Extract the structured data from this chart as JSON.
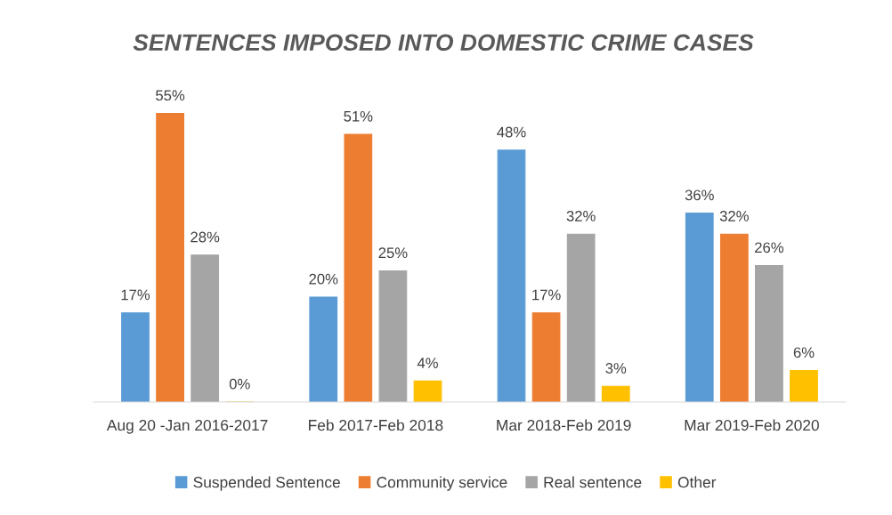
{
  "chart_data": {
    "type": "bar",
    "title": "SENTENCES IMPOSED INTO DOMESTIC CRIME CASES",
    "categories": [
      "Aug 20 -Jan 2016-2017",
      "Feb 2017-Feb 2018",
      "Mar 2018-Feb 2019",
      "Mar 2019-Feb 2020"
    ],
    "series": [
      {
        "name": "Suspended Sentence",
        "color": "#5b9bd5",
        "values": [
          17,
          20,
          48,
          36
        ],
        "value_labels": [
          "17%",
          "20%",
          "48%",
          "36%"
        ]
      },
      {
        "name": "Community service",
        "color": "#ed7d31",
        "values": [
          55,
          51,
          17,
          32
        ],
        "value_labels": [
          "55%",
          "51%",
          "17%",
          "32%"
        ]
      },
      {
        "name": "Real sentence",
        "color": "#a5a5a5",
        "values": [
          28,
          25,
          32,
          26
        ],
        "value_labels": [
          "28%",
          "25%",
          "32%",
          "26%"
        ]
      },
      {
        "name": "Other",
        "color": "#ffc000",
        "values": [
          0,
          4,
          3,
          6
        ],
        "value_labels": [
          "0%",
          "4%",
          "3%",
          "6%"
        ]
      }
    ],
    "legend": "bottom"
  }
}
